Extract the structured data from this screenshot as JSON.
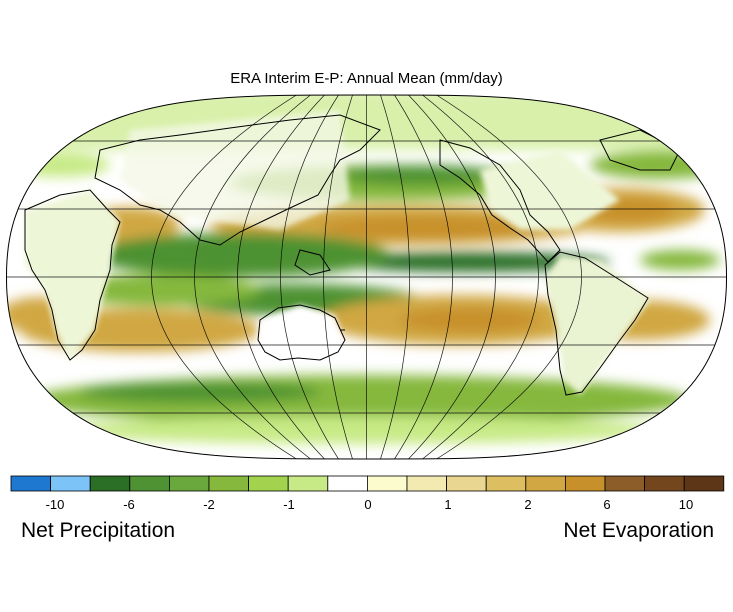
{
  "title": "ERA Interim E-P: Annual Mean (mm/day)",
  "legend": {
    "colors": [
      "#1f78d0",
      "#7cc3f8",
      "#2b6e26",
      "#4e9233",
      "#6aa83d",
      "#85b83d",
      "#a2d24e",
      "#c8ea86",
      "#ffffff",
      "#fbfbce",
      "#f2eab1",
      "#e8d691",
      "#ddbf62",
      "#d0a742",
      "#c8902a",
      "#8c5c29",
      "#74461e",
      "#5c3617"
    ],
    "tick_labels": [
      "-10",
      "-6",
      "-2",
      "-1",
      "0",
      "1",
      "2",
      "6",
      "10"
    ],
    "left_caption": "Net Precipitation",
    "right_caption": "Net Evaporation"
  },
  "map": {
    "projection": "Robinson",
    "ocean_default": "#ffffff",
    "field_colors": {
      "wet_strong": "#2b6e26",
      "wet_mid": "#4e9233",
      "wet": "#85b83d",
      "wet_light": "#c8ea86",
      "dry_light": "#e8d691",
      "dry": "#d0a742",
      "dry_strong": "#c8902a",
      "blue": "#1f78d0",
      "blue_light": "#7cc3f8"
    }
  }
}
